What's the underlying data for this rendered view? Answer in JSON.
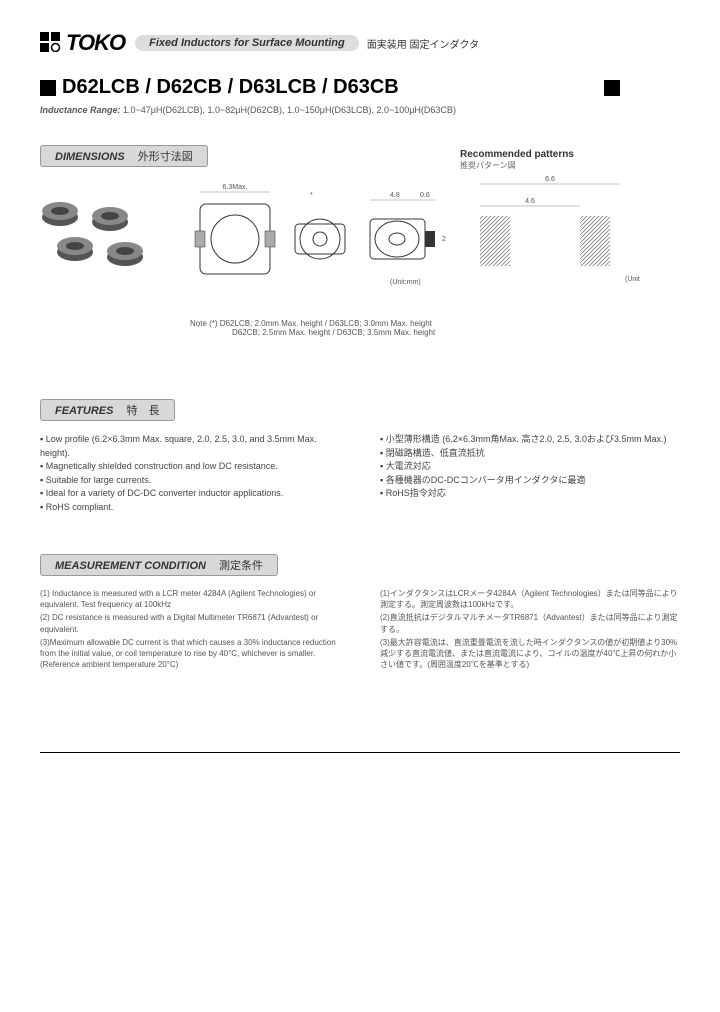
{
  "header": {
    "brand": "TOKO",
    "subtitle": "Fixed Inductors for Surface Mounting",
    "subtitle_jp": "面実装用 固定インダクタ"
  },
  "title": "D62LCB / D62CB / D63LCB / D63CB",
  "inductance_range": {
    "label": "Inductance Range:",
    "text": "1.0~47μH(D62LCB), 1.0~82μH(D62CB), 1.0~150μH(D63LCB), 2.0~100μH(D63CB)"
  },
  "sections": {
    "dimensions": {
      "en": "DIMENSIONS",
      "jp": "外形寸法図"
    },
    "features": {
      "en": "FEATURES",
      "jp": "特　長"
    },
    "measurement": {
      "en": "MEASUREMENT CONDITION",
      "jp": "測定条件"
    }
  },
  "recommended": {
    "title": "Recommended patterns",
    "jp": "推奨パターン図"
  },
  "drawings": {
    "width": "6.3Max.",
    "height": "6.2Max.",
    "pad_w": "4.8",
    "pad_gap": "0.6",
    "pad_h": "2",
    "unit": "(Unit:mm)",
    "rec_w": "6.6",
    "rec_w2": "4.6"
  },
  "note": {
    "line1": "Note (*) D62LCB; 2.0mm Max. height / D63LCB; 3.0mm Max. height",
    "line2": "D62CB; 2.5mm Max. height / D63CB; 3.5mm Max. height"
  },
  "features": {
    "left": [
      "Low profile (6.2×6.3mm Max. square, 2.0, 2.5, 3.0, and 3.5mm Max. height).",
      "Magnetically shielded construction and low DC resistance.",
      "Suitable for large currents.",
      "Ideal for a variety of DC-DC converter inductor applications.",
      "RoHS compliant."
    ],
    "right": [
      "小型薄形構造 (6.2×6.3mm角Max. 高さ2.0, 2.5, 3.0および3.5mm Max.)",
      "閉磁路構造、低直流抵抗",
      "大電流対応",
      "各種機器のDC-DCコンバータ用インダクタに最適",
      "RoHS指令対応"
    ]
  },
  "measurement": {
    "left": [
      "(1) Inductance is measured with a LCR meter 4284A (Agilent Technologies) or equivalent. Test frequency at 100kHz",
      "(2) DC resistance is measured with a Digital Multimeter TR6871 (Advantest) or equivalent.",
      "(3)Maximum allowable DC current is that which causes a 30% inductance reduction from the initial value, or coil temperature to rise by 40°C, whichever is smaller. (Reference ambient temperature 20°C)"
    ],
    "right": [
      "(1)インダクタンスはLCRメータ4284A（Agilent Technologies）または同等品により測定する。測定周波数は100kHzです。",
      "(2)直流抵抗はデジタルマルチメータTR6871（Advantest）または同等品により測定する。",
      "(3)最大許容電流は、直流重畳電流を流した時インダクタンスの値が初期値より30%減少する直流電流値、または直流電流により、コイルの温度が40℃上昇の何れか小さい値です。(周囲温度20℃を基準とする)"
    ]
  },
  "colors": {
    "header_pill": "#dddddd",
    "section_bg": "#d8d8d8",
    "text": "#333333",
    "body_text": "#555555"
  }
}
